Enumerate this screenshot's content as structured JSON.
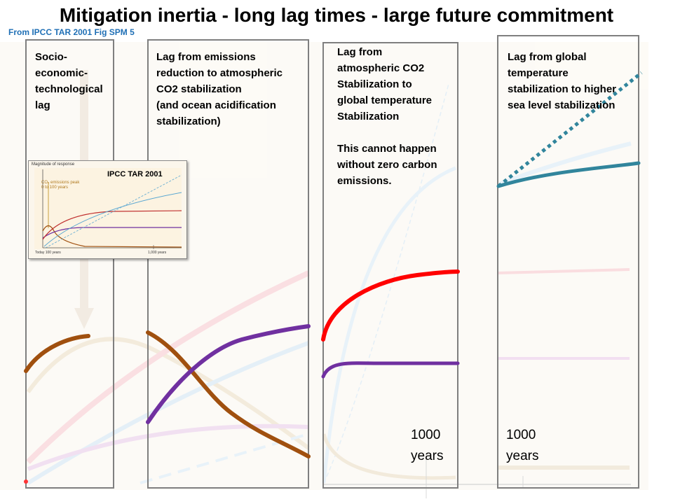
{
  "title": "Mitigation inertia - long lag times - large future commitment",
  "source": "From IPCC TAR 2001 Fig SPM 5",
  "panels": [
    {
      "label": "Socio-\neconomic-\ntechnological\nlag"
    },
    {
      "label": "Lag from emissions\nreduction to atmospheric\nCO2 stabilization\n(and ocean acidification\nstabilization)"
    },
    {
      "label": "Lag from\natmospheric CO2\nStabilization to\nglobal temperature\nStabilization\n\nThis cannot happen\nwithout zero carbon\nemissions.",
      "years": "1000\nyears"
    },
    {
      "label": "Lag from global\ntemperature\nstabilization to higher\nsea level stabilization",
      "years": "1000\nyears"
    }
  ],
  "inset": {
    "title": "IPCC TAR 2001",
    "y_label": "Magnitude of response",
    "peak_label": "CO₂ emissions peak\n0 to 100 years",
    "x_labels": [
      "Today  100 years",
      "1,000 years"
    ]
  },
  "colors": {
    "emissions": "#a0500f",
    "co2": "#7030a0",
    "temperature": "#ff0000",
    "sea_level": "#31859c",
    "source": "#1f6fb5"
  }
}
